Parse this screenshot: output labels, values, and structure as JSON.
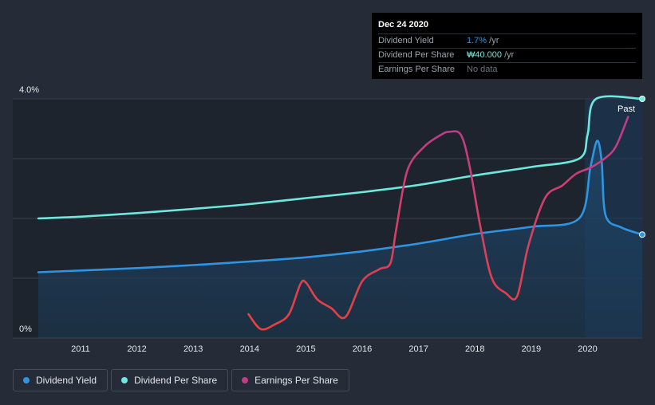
{
  "chart_data": {
    "type": "line",
    "ylim": [
      0,
      4.0
    ],
    "yticks": [
      "0%",
      "4.0%"
    ],
    "xticks": [
      "2011",
      "2012",
      "2013",
      "2014",
      "2015",
      "2016",
      "2017",
      "2018",
      "2019",
      "2020"
    ],
    "xlim": [
      2010.25,
      2020.97
    ],
    "past_label": "Past",
    "series": [
      {
        "name": "Dividend Yield",
        "color": "#2f94e2",
        "points": [
          [
            2010.25,
            1.1
          ],
          [
            2011.0,
            1.13
          ],
          [
            2012.0,
            1.17
          ],
          [
            2013.0,
            1.22
          ],
          [
            2014.0,
            1.28
          ],
          [
            2015.0,
            1.35
          ],
          [
            2016.0,
            1.45
          ],
          [
            2017.0,
            1.58
          ],
          [
            2018.0,
            1.74
          ],
          [
            2019.0,
            1.86
          ],
          [
            2019.85,
            2.0
          ],
          [
            2020.05,
            2.85
          ],
          [
            2020.17,
            3.3
          ],
          [
            2020.25,
            2.95
          ],
          [
            2020.32,
            2.05
          ],
          [
            2020.6,
            1.85
          ],
          [
            2020.97,
            1.73
          ]
        ]
      },
      {
        "name": "Dividend Per Share",
        "color": "#6ee8dc",
        "points": [
          [
            2010.25,
            2.0
          ],
          [
            2011.0,
            2.03
          ],
          [
            2012.0,
            2.09
          ],
          [
            2013.0,
            2.16
          ],
          [
            2014.0,
            2.24
          ],
          [
            2015.0,
            2.34
          ],
          [
            2016.0,
            2.44
          ],
          [
            2017.0,
            2.56
          ],
          [
            2018.0,
            2.72
          ],
          [
            2019.0,
            2.86
          ],
          [
            2019.85,
            3.0
          ],
          [
            2020.0,
            3.4
          ],
          [
            2020.15,
            4.0
          ],
          [
            2020.97,
            4.0
          ]
        ]
      },
      {
        "name": "Earnings Per Share",
        "color": "#c43c85",
        "points": [
          [
            2013.98,
            0.4
          ],
          [
            2014.2,
            0.15
          ],
          [
            2014.45,
            0.23
          ],
          [
            2014.7,
            0.4
          ],
          [
            2014.9,
            0.9
          ],
          [
            2015.0,
            0.93
          ],
          [
            2015.2,
            0.65
          ],
          [
            2015.45,
            0.5
          ],
          [
            2015.7,
            0.35
          ],
          [
            2016.0,
            0.95
          ],
          [
            2016.3,
            1.15
          ],
          [
            2016.5,
            1.25
          ],
          [
            2016.6,
            1.8
          ],
          [
            2016.8,
            2.8
          ],
          [
            2017.1,
            3.2
          ],
          [
            2017.4,
            3.4
          ],
          [
            2017.55,
            3.45
          ],
          [
            2017.75,
            3.4
          ],
          [
            2017.9,
            2.9
          ],
          [
            2018.1,
            1.85
          ],
          [
            2018.3,
            1.0
          ],
          [
            2018.55,
            0.75
          ],
          [
            2018.75,
            0.7
          ],
          [
            2018.95,
            1.55
          ],
          [
            2019.25,
            2.35
          ],
          [
            2019.55,
            2.55
          ],
          [
            2019.8,
            2.75
          ],
          [
            2020.05,
            2.85
          ],
          [
            2020.3,
            3.0
          ],
          [
            2020.5,
            3.2
          ],
          [
            2020.72,
            3.7
          ]
        ]
      }
    ]
  },
  "tooltip": {
    "date": "Dec 24 2020",
    "rows": [
      {
        "key": "Dividend Yield",
        "value": "1.7%",
        "unit": " /yr"
      },
      {
        "key": "Dividend Per Share",
        "value": "₩40.000",
        "unit": " /yr"
      },
      {
        "key": "Earnings Per Share",
        "value": "No data",
        "unit": ""
      }
    ]
  },
  "legend": [
    {
      "label": "Dividend Yield",
      "color": "#2f94e2"
    },
    {
      "label": "Dividend Per Share",
      "color": "#6ee8dc"
    },
    {
      "label": "Earnings Per Share",
      "color": "#c43c85"
    }
  ]
}
